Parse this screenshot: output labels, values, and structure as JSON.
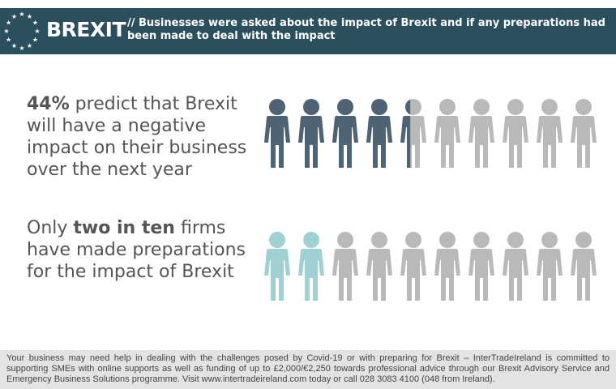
{
  "header": {
    "logo_text": "BREXIT",
    "description": "// Businesses were asked about the impact of Brexit and if any preparations had been made to deal with the impact"
  },
  "stat1": {
    "highlight": "44%",
    "text": " predict that Brexit will have a negative impact on their business over the next year",
    "percent": 44
  },
  "stat2": {
    "prefix": "Only ",
    "highlight": "two in ten",
    "suffix": " firms have made preparations for the impact of Brexit",
    "count": 2
  },
  "colors": {
    "header": "#2c4f5e",
    "dark_figure": "#4e6374",
    "grey_figure": "#b9b9b9",
    "teal_figure": "#9fd0d2"
  },
  "footer": {
    "text": "Your business may need help in dealing with the challenges posed by Covid-19 or with preparing for Brexit – InterTradeIreland is committed to supporting SMEs with online supports as well as funding of up to £2,000/€2,250 towards professional advice through our Brexit Advisory Service and Emergency Business Solutions programme. Visit www.intertradeireland.com today or call 028 3083 4100 (048 from Ireland)."
  }
}
